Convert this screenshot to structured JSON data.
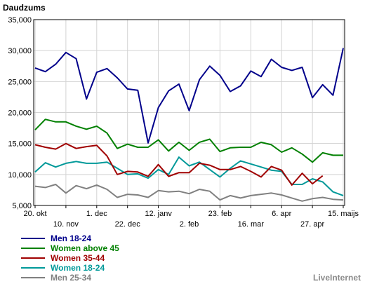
{
  "chart_data": {
    "type": "line",
    "ylabel": "Daudzums",
    "ylim": [
      5000,
      35000
    ],
    "yticks": [
      "35,000",
      "30,000",
      "25,000",
      "20,000",
      "15,000",
      "10,000",
      "5,000"
    ],
    "ytick_values": [
      35000,
      30000,
      25000,
      20000,
      15000,
      10000,
      5000
    ],
    "xtick_labels_row1": [
      "20. okt",
      "1. dec",
      "12. janv",
      "23. feb",
      "6. apr",
      "15. maijs"
    ],
    "xtick_labels_row2": [
      "10. nov",
      "22. dec",
      "2. feb",
      "16. mar",
      "27. apr"
    ],
    "grid": true,
    "legend_position": "bottom-left",
    "series": [
      {
        "name": "Men 18-24",
        "color": "#00008b",
        "values": [
          27200,
          26600,
          27800,
          29700,
          28700,
          22200,
          26500,
          27100,
          25600,
          23800,
          23600,
          15100,
          20800,
          23500,
          24600,
          20300,
          25300,
          27500,
          26000,
          23400,
          24300,
          26700,
          25800,
          28600,
          27300,
          26800,
          27300,
          22400,
          24500,
          22800,
          30400
        ]
      },
      {
        "name": "Women above 45",
        "color": "#008000",
        "values": [
          17200,
          18900,
          18500,
          18500,
          17800,
          17300,
          17800,
          16700,
          14200,
          14900,
          14400,
          14400,
          15600,
          13800,
          15200,
          13900,
          15200,
          15700,
          13700,
          14300,
          14400,
          14400,
          15200,
          14800,
          13600,
          14300,
          13300,
          12000,
          13500,
          13100,
          13100
        ]
      },
      {
        "name": "Women 35-44",
        "color": "#a00000",
        "values": [
          14800,
          14400,
          14100,
          15000,
          14200,
          14500,
          14700,
          13000,
          10000,
          10500,
          10400,
          9700,
          11600,
          9700,
          10300,
          10300,
          11800,
          11500,
          10800,
          10800,
          11300,
          10500,
          9600,
          11300,
          10700,
          8300,
          10200,
          8500,
          9800
        ]
      },
      {
        "name": "Women 18-24",
        "color": "#009999",
        "values": [
          10400,
          11900,
          11200,
          11800,
          12100,
          11800,
          11800,
          12000,
          11000,
          10000,
          10100,
          9400,
          10800,
          10000,
          12800,
          11400,
          12000,
          10800,
          9600,
          11000,
          12200,
          11700,
          11200,
          10700,
          10500,
          8400,
          8400,
          9300,
          8800,
          7200,
          6600
        ]
      },
      {
        "name": "Men 25-34",
        "color": "#808080",
        "values": [
          8100,
          7900,
          8400,
          7000,
          8200,
          7700,
          8300,
          7600,
          6300,
          6800,
          6700,
          6300,
          7400,
          7200,
          7300,
          6900,
          7600,
          7300,
          5900,
          6600,
          6200,
          6600,
          6800,
          7000,
          6700,
          6200,
          5700,
          6100,
          6300,
          6000,
          5900
        ]
      }
    ]
  },
  "brand": "LiveInternet"
}
